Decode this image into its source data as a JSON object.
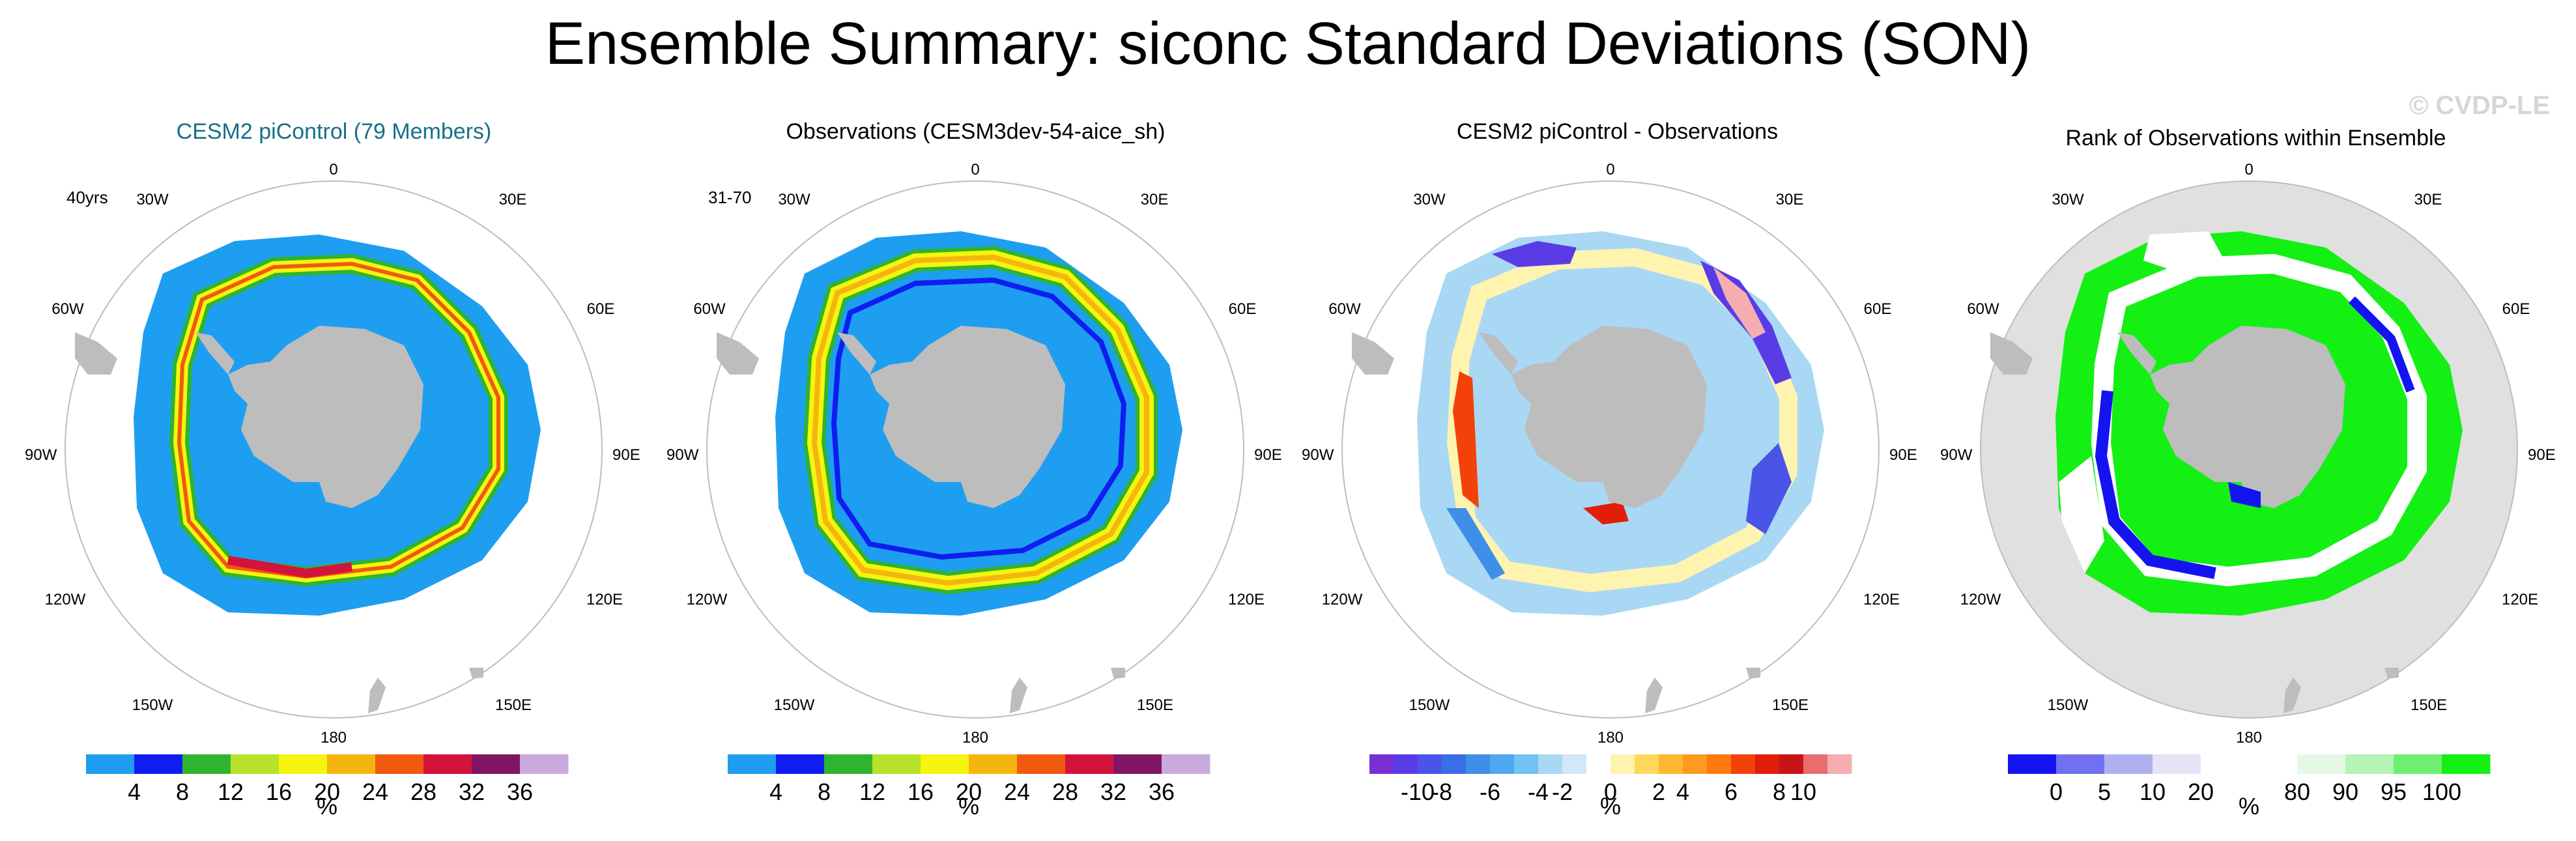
{
  "page": {
    "title": "Ensemble Summary: siconc Standard Deviations (SON)",
    "watermark": "© CVDP-LE"
  },
  "map_labels": {
    "top": "0",
    "bottom": "180",
    "left_upper": "30W",
    "left_mid_upper": "60W",
    "left_mid": "90W",
    "left_mid_lower": "120W",
    "left_lower": "150W",
    "right_upper": "30E",
    "right_mid_upper": "60E",
    "right_mid": "90E",
    "right_mid_lower": "120E",
    "right_lower": "150E"
  },
  "panels": [
    {
      "id": "model",
      "title": "CESM2 piControl (79 Members)",
      "subtitle": "40yrs",
      "colorbar": {
        "unit": "%",
        "colors": [
          "#1e9ef0",
          "#0f1df0",
          "#2eb42e",
          "#b8e22a",
          "#f5f50f",
          "#f5b50f",
          "#f05a0f",
          "#d2143c",
          "#821464",
          "#c8aadc"
        ],
        "ticks": [
          "4",
          "8",
          "12",
          "16",
          "20",
          "24",
          "28",
          "32",
          "36"
        ]
      }
    },
    {
      "id": "obs",
      "title": "Observations (CESM3dev-54-aice_sh)",
      "subtitle": "31-70",
      "colorbar": {
        "unit": "%",
        "colors": [
          "#1e9ef0",
          "#0f1df0",
          "#2eb42e",
          "#b8e22a",
          "#f5f50f",
          "#f5b50f",
          "#f05a0f",
          "#d2143c",
          "#821464",
          "#c8aadc"
        ],
        "ticks": [
          "4",
          "8",
          "12",
          "16",
          "20",
          "24",
          "28",
          "32",
          "36"
        ]
      }
    },
    {
      "id": "diff",
      "title": "CESM2 piControl - Observations",
      "subtitle": "",
      "colorbar": {
        "unit": "%",
        "colors": [
          "#7a2ed6",
          "#5a3ce6",
          "#4a55e8",
          "#3a6ee8",
          "#3f8ee8",
          "#4fa8f0",
          "#6fc2f2",
          "#a9d8f5",
          "#d0e8f8",
          "#ffffff",
          "#fff3b0",
          "#ffd75a",
          "#ffb830",
          "#ff9a20",
          "#ff7a10",
          "#f2420a",
          "#e01e0a",
          "#c81414",
          "#e86e6e",
          "#f4aeb0"
        ],
        "ticks": [
          "-10",
          "-8",
          "-6",
          "-4",
          "-2",
          "0",
          "2",
          "4",
          "6",
          "8",
          "10"
        ]
      }
    },
    {
      "id": "rank",
      "title": "Rank of Observations within Ensemble",
      "subtitle": "",
      "colorbar": {
        "unit": "%",
        "colors": [
          "#1414f0",
          "#7070f0",
          "#b0b0f0",
          "#e4e4f6",
          "#ffffff",
          "#ffffff",
          "#e4f8e4",
          "#b4f4b4",
          "#70f070",
          "#14f014"
        ],
        "ticks": [
          "0",
          "5",
          "10",
          "20",
          "80",
          "90",
          "95",
          "100"
        ]
      }
    }
  ]
}
